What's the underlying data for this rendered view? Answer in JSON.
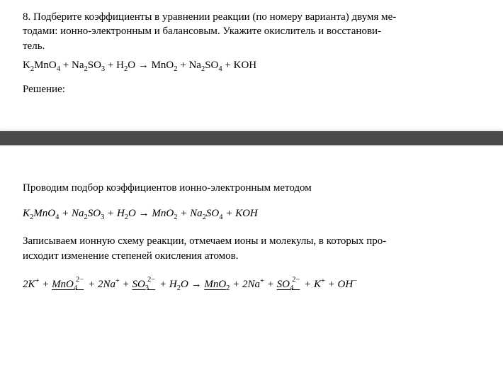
{
  "top": {
    "problem_number": "8.",
    "problem_text_line1": "8. Подберите коэффициенты в уравнении реакции (по номеру варианта) двумя ме-",
    "problem_text_line2": "тодами: ионно-электронным и балансовым. Укажите окислитель и восстанови-",
    "problem_text_line3": "тель.",
    "equation_parts": {
      "k2mno4": "K",
      "k2mno4_sub1": "2",
      "k2mno4_mn": "MnO",
      "k2mno4_sub2": "4",
      "plus": " + ",
      "na2so3": "Na",
      "na2so3_sub1": "2",
      "na2so3_so": "SO",
      "na2so3_sub2": "3",
      "h2o": "H",
      "h2o_sub": "2",
      "h2o_o": "O",
      "arrow": " → ",
      "mno2": "MnO",
      "mno2_sub": "2",
      "na2so4": "Na",
      "na2so4_sub1": "2",
      "na2so4_so": "SO",
      "na2so4_sub2": "4",
      "koh": "KOH"
    },
    "solution_label": "Решение:"
  },
  "bottom": {
    "method_text": "Проводим подбор коэффициентов ионно-электронным методом",
    "equation_italic_parts": {
      "k2mno4": "K",
      "k2mno4_sub1": "2",
      "k2mno4_mn": "MnO",
      "k2mno4_sub2": "4",
      "plus": " + ",
      "na2so3": "Na",
      "na2so3_sub1": "2",
      "na2so3_so": "SO",
      "na2so3_sub2": "3",
      "h2o": "H",
      "h2o_sub": "2",
      "h2o_o": "O",
      "arrow": " → ",
      "mno2": "MnO",
      "mno2_sub": "2",
      "na2so4": "Na",
      "na2so4_sub1": "2",
      "na2so4_so": "SO",
      "na2so4_sub2": "4",
      "koh": "KOH"
    },
    "description_line1": "Записываем ионную схему реакции, отмечаем ионы и молекулы, в которых про-",
    "description_line2": "исходит изменение степеней окисления атомов.",
    "ionic_parts": {
      "two": "2",
      "k": "K",
      "k_sup": "+",
      "plus": " + ",
      "mno4": "MnO",
      "mno4_sub": "4",
      "mno4_sup": "2−",
      "na": "Na",
      "na_sup": "+",
      "so3": "SO",
      "so3_sub": "3",
      "so3_sup": "2−",
      "h2o": "H",
      "h2o_sub": "2",
      "h2o_o": "O",
      "arrow": " → ",
      "mno2": "MnO",
      "mno2_sub": "2",
      "so4": "SO",
      "so4_sub": "4",
      "so4_sup": "2−",
      "oh": "OH",
      "oh_sup": "−"
    }
  }
}
